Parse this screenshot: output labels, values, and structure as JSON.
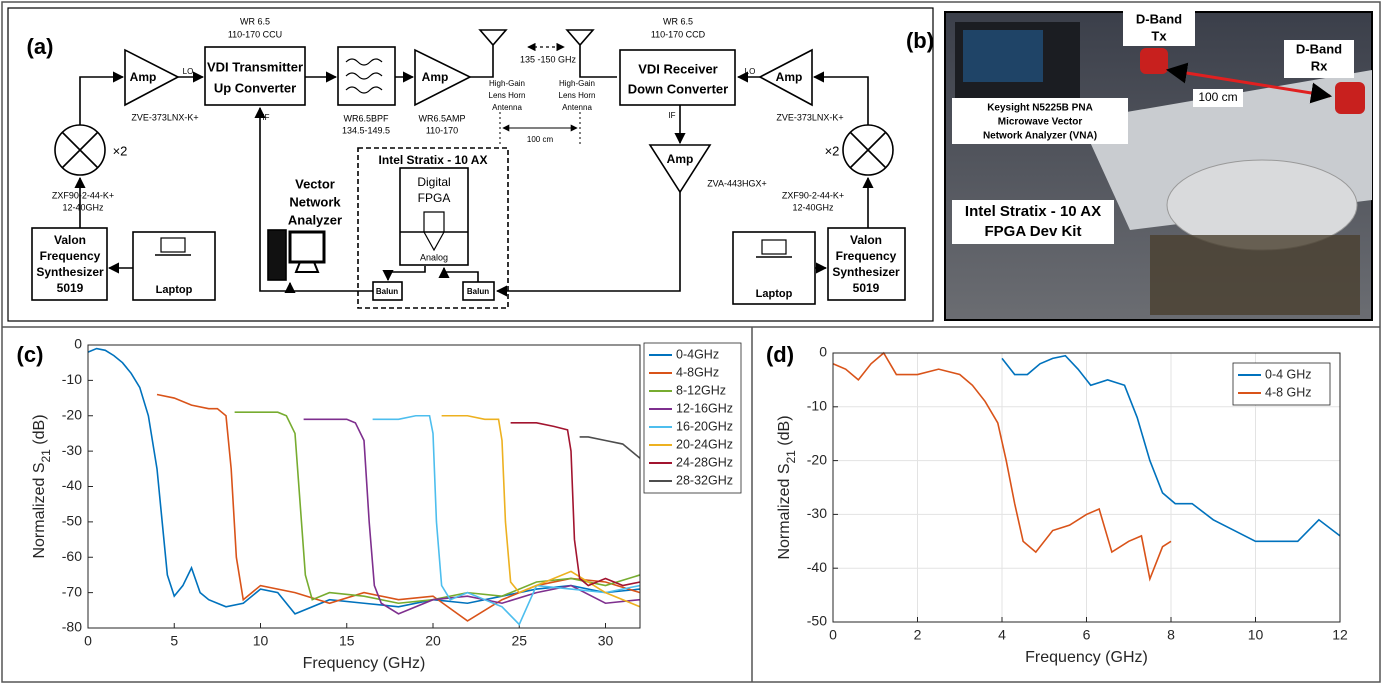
{
  "diagram": {
    "label": "(a)",
    "tx_lo_amp": {
      "label": "Amp",
      "port": "LO",
      "part": "ZVE-373LNX-K+"
    },
    "tx_converter": {
      "band": "WR 6.5",
      "range": "110-170 CCU",
      "lines": [
        "VDI Transmitter",
        "Up Converter"
      ],
      "port": "IF"
    },
    "bpf": {
      "lines": [
        "WR6.5BPF",
        "134.5-149.5"
      ]
    },
    "tx_amp": {
      "label": "Amp",
      "lines": [
        "WR6.5AMP",
        "110-170"
      ]
    },
    "tx_antenna": {
      "lines": [
        "High-Gain",
        "Lens Horn",
        "Antenna"
      ]
    },
    "rx_antenna": {
      "lines": [
        "High-Gain",
        "Lens Horn",
        "Antenna"
      ]
    },
    "link": {
      "band": "135 -150 GHz",
      "distance": "100 cm"
    },
    "rx_converter": {
      "band": "WR 6.5",
      "range": "110-170 CCD",
      "lines": [
        "VDI Receiver",
        "Down Converter"
      ],
      "port": "IF"
    },
    "rx_lo_amp": {
      "label": "Amp",
      "port": "LO",
      "part": "ZVE-373LNX-K+"
    },
    "if_amp": {
      "label": "Amp",
      "part": "ZVA-443HGX+"
    },
    "tx_mixer": {
      "factor": "×2",
      "lines": [
        "ZXF90-2-44-K+",
        "12-40GHz"
      ]
    },
    "rx_mixer": {
      "factor": "×2",
      "lines": [
        "ZXF90-2-44-K+",
        "12-40GHz"
      ]
    },
    "tx_synth": {
      "lines": [
        "Valon",
        "Frequency",
        "Synthesizer",
        "5019"
      ]
    },
    "rx_synth": {
      "lines": [
        "Valon",
        "Frequency",
        "Synthesizer",
        "5019"
      ]
    },
    "tx_laptop": {
      "label": "Laptop"
    },
    "rx_laptop": {
      "label": "Laptop"
    },
    "vna": {
      "lines": [
        "Vector",
        "Network",
        "Analyzer"
      ]
    },
    "fpga_board": {
      "title": "Intel Stratix - 10 AX",
      "digital": [
        "Digital",
        "FPGA"
      ],
      "analog": "Analog",
      "baluns": [
        "Balun",
        "Balun"
      ]
    }
  },
  "photo": {
    "label": "(b)",
    "tx": [
      "D-Band",
      "Tx"
    ],
    "rx": [
      "D-Band",
      "Rx"
    ],
    "distance": "100 cm",
    "vna": [
      "Keysight  N5225B PNA",
      "Microwave Vector",
      "Network Analyzer (VNA)"
    ],
    "fpga": [
      "Intel Stratix - 10 AX",
      "FPGA Dev Kit"
    ]
  },
  "chart_data": [
    {
      "type": "line",
      "panel_label": "(c)",
      "xlabel": "Frequency (GHz)",
      "ylabel_parts": [
        "Normalized S",
        "21",
        " (dB)"
      ],
      "xlim": [
        0,
        32
      ],
      "ylim": [
        -80,
        0
      ],
      "xticks": [
        0,
        5,
        10,
        15,
        20,
        25,
        30
      ],
      "yticks": [
        0,
        -10,
        -20,
        -30,
        -40,
        -50,
        -60,
        -70,
        -80
      ],
      "grid": false,
      "legend": "outside-right",
      "series": [
        {
          "name": "0-4GHz",
          "color": "#0072BD",
          "x": [
            0,
            0.5,
            1,
            1.5,
            2,
            2.5,
            3,
            3.5,
            4,
            4.3,
            4.6,
            5,
            5.5,
            6,
            6.5,
            7,
            7.5,
            8,
            9,
            10,
            11,
            12,
            14,
            16,
            18,
            20,
            22,
            24,
            26,
            28,
            30,
            32
          ],
          "values": [
            -2,
            -1,
            -1.5,
            -3,
            -5,
            -8,
            -12,
            -20,
            -35,
            -50,
            -65,
            -71,
            -68,
            -63,
            -70,
            -72,
            -73,
            -74,
            -73,
            -69,
            -70,
            -76,
            -72,
            -73,
            -74,
            -72,
            -73,
            -71,
            -69,
            -68,
            -70,
            -69
          ]
        },
        {
          "name": "4-8GHz",
          "color": "#D95319",
          "x": [
            4,
            5,
            6,
            7,
            7.5,
            8,
            8.3,
            8.6,
            9,
            10,
            12,
            14,
            16,
            18,
            20,
            22,
            24,
            26,
            28,
            30,
            32
          ],
          "values": [
            -14,
            -15,
            -17,
            -18,
            -18,
            -20,
            -35,
            -60,
            -72,
            -68,
            -70,
            -73,
            -70,
            -72,
            -71,
            -78,
            -72,
            -68,
            -66,
            -67,
            -70
          ]
        },
        {
          "name": "8-12GHz",
          "color": "#77AC30",
          "x": [
            8.5,
            9,
            10,
            11,
            11.5,
            12,
            12.3,
            12.6,
            13,
            14,
            16,
            18,
            20,
            22,
            24,
            26,
            28,
            30,
            32
          ],
          "values": [
            -19,
            -19,
            -19,
            -19,
            -20,
            -25,
            -45,
            -65,
            -72,
            -70,
            -71,
            -73,
            -72,
            -70,
            -71,
            -67,
            -66,
            -68,
            -65
          ]
        },
        {
          "name": "12-16GHz",
          "color": "#7E2F8E",
          "x": [
            12.5,
            13,
            14,
            15,
            15.5,
            16,
            16.3,
            16.6,
            17,
            18,
            20,
            22,
            24,
            26,
            28,
            30,
            32
          ],
          "values": [
            -21,
            -21,
            -21,
            -21,
            -22,
            -27,
            -50,
            -68,
            -73,
            -76,
            -72,
            -71,
            -73,
            -70,
            -68,
            -73,
            -72
          ]
        },
        {
          "name": "16-20GHz",
          "color": "#4DBEEE",
          "x": [
            16.5,
            17,
            18,
            19,
            19.8,
            20,
            20.2,
            20.5,
            21,
            22,
            24,
            25,
            26,
            28,
            30,
            32
          ],
          "values": [
            -21,
            -21,
            -21,
            -20,
            -20,
            -25,
            -50,
            -68,
            -72,
            -70,
            -74,
            -79,
            -68,
            -69,
            -70,
            -68
          ]
        },
        {
          "name": "20-24GHz",
          "color": "#EDB120",
          "x": [
            20.5,
            21,
            22,
            23,
            23.8,
            24,
            24.2,
            24.5,
            25,
            26,
            28,
            30,
            32
          ],
          "values": [
            -20,
            -20,
            -20,
            -21,
            -21,
            -27,
            -50,
            -67,
            -70,
            -68,
            -64,
            -70,
            -74
          ]
        },
        {
          "name": "24-28GHz",
          "color": "#A2142F",
          "x": [
            24.5,
            25,
            26,
            27,
            27.8,
            28,
            28.2,
            28.5,
            29,
            30,
            31,
            32
          ],
          "values": [
            -22,
            -22,
            -22,
            -23,
            -24,
            -30,
            -55,
            -66,
            -68,
            -66,
            -68,
            -67
          ]
        },
        {
          "name": "28-32GHz",
          "color": "#4D4D4D",
          "x": [
            28.5,
            29,
            30,
            31,
            31.5,
            32
          ],
          "values": [
            -26,
            -26,
            -27,
            -28,
            -30,
            -32
          ]
        }
      ]
    },
    {
      "type": "line",
      "panel_label": "(d)",
      "xlabel": "Frequency (GHz)",
      "ylabel_parts": [
        "Normalized S",
        "21",
        " (dB)"
      ],
      "xlim": [
        0,
        12
      ],
      "ylim": [
        -50,
        0
      ],
      "xticks": [
        0,
        2,
        4,
        6,
        8,
        10,
        12
      ],
      "yticks": [
        0,
        -10,
        -20,
        -30,
        -40,
        -50
      ],
      "grid": true,
      "legend": "upper-right",
      "series": [
        {
          "name": "0-4 GHz",
          "color": "#0072BD",
          "x": [
            4,
            4.3,
            4.6,
            4.9,
            5.2,
            5.5,
            5.8,
            6.1,
            6.5,
            6.9,
            7.2,
            7.5,
            7.8,
            8.1,
            8.5,
            9,
            9.5,
            10,
            10.5,
            11,
            11.5,
            12
          ],
          "values": [
            -1,
            -4,
            -4,
            -2,
            -1,
            -0.5,
            -3,
            -6,
            -5,
            -6,
            -12,
            -20,
            -26,
            -28,
            -28,
            -31,
            -33,
            -35,
            -35,
            -35,
            -31,
            -34
          ]
        },
        {
          "name": "4-8 GHz",
          "color": "#D95319",
          "x": [
            0,
            0.3,
            0.6,
            0.9,
            1.2,
            1.5,
            2,
            2.5,
            3,
            3.3,
            3.6,
            3.9,
            4.1,
            4.3,
            4.5,
            4.8,
            5.2,
            5.6,
            6,
            6.3,
            6.6,
            7,
            7.3,
            7.5,
            7.8,
            8
          ],
          "values": [
            -2,
            -3,
            -5,
            -2,
            0,
            -4,
            -4,
            -3,
            -4,
            -6,
            -9,
            -13,
            -20,
            -28,
            -35,
            -37,
            -33,
            -32,
            -30,
            -29,
            -37,
            -35,
            -34,
            -42,
            -36,
            -35
          ]
        }
      ]
    }
  ]
}
